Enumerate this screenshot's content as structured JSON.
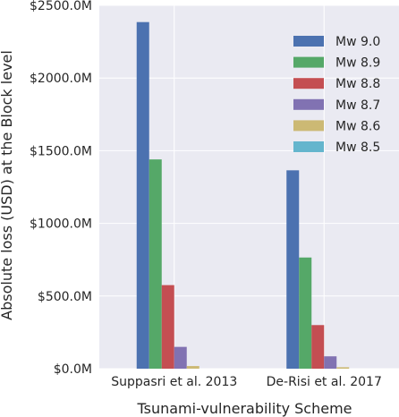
{
  "chart_data": {
    "type": "bar",
    "xlabel": "Tsunami-vulnerability Scheme",
    "ylabel": "Absolute loss (USD) at the Block level",
    "categories": [
      "Suppasri et al. 2013",
      "De-Risi et al. 2017"
    ],
    "ylim": [
      0,
      2500
    ],
    "yticks": [
      0,
      500,
      1000,
      1500,
      2000,
      2500
    ],
    "ytick_labels": [
      "$0.0M",
      "$500.0M",
      "$1000.0M",
      "$1500.0M",
      "$2000.0M",
      "$2500.0M"
    ],
    "grid": true,
    "legend_position": "top-right",
    "series": [
      {
        "name": "Mw 9.0",
        "color": "#4c72b0",
        "values": [
          2385,
          1365
        ]
      },
      {
        "name": "Mw 8.9",
        "color": "#55a868",
        "values": [
          1440,
          765
        ]
      },
      {
        "name": "Mw 8.8",
        "color": "#c44e52",
        "values": [
          575,
          300
        ]
      },
      {
        "name": "Mw 8.7",
        "color": "#8172b2",
        "values": [
          150,
          85
        ]
      },
      {
        "name": "Mw 8.6",
        "color": "#ccb974",
        "values": [
          18,
          10
        ]
      },
      {
        "name": "Mw 8.5",
        "color": "#64b5cd",
        "values": [
          0,
          0
        ]
      }
    ],
    "plot_background": "#eaeaf2",
    "grid_color": "#ffffff"
  }
}
